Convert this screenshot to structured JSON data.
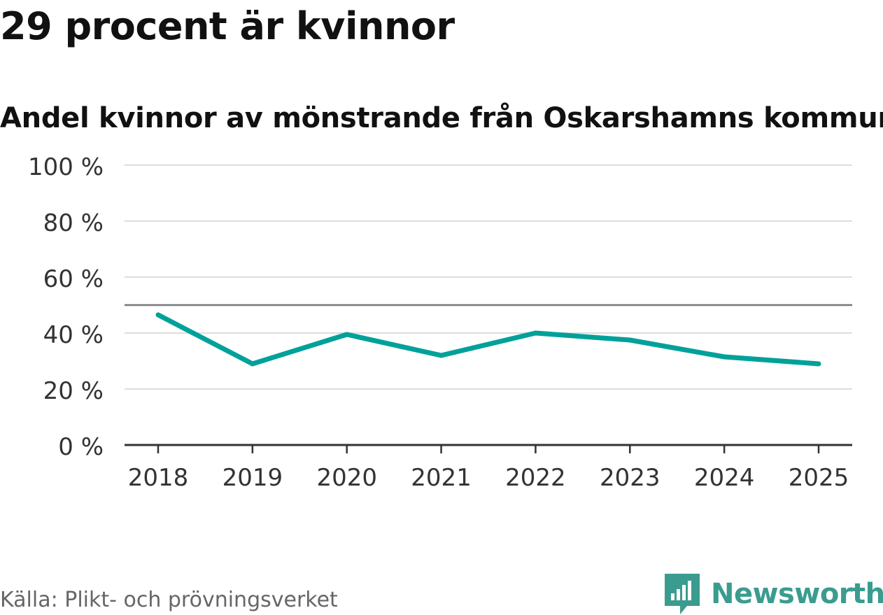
{
  "title": "29 procent är kvinnor",
  "subtitle": "Andel kvinnor av mönstrande från Oskarshamns kommun",
  "source": "Källa: Plikt- och prövningsverket",
  "brand": {
    "name": "Newsworthy",
    "icon": "newsworthy-logo-icon",
    "color": "#3a9c8f"
  },
  "colors": {
    "series": "#00a19a",
    "reference_line": "#777777",
    "grid": "#dddddd",
    "axis": "#333333"
  },
  "chart_data": {
    "type": "line",
    "title": "29 procent är kvinnor",
    "subtitle": "Andel kvinnor av mönstrande från Oskarshamns kommun",
    "categories": [
      "2018",
      "2019",
      "2020",
      "2021",
      "2022",
      "2023",
      "2024",
      "2025"
    ],
    "series": [
      {
        "values": [
          46.5,
          29,
          39.5,
          32,
          40,
          37.5,
          31.5,
          29
        ]
      }
    ],
    "reference_line": 50,
    "ylim": [
      0,
      100
    ],
    "yticks": [
      0,
      20,
      40,
      60,
      80,
      100
    ],
    "ytick_labels": [
      "0 %",
      "20 %",
      "40 %",
      "60 %",
      "80 %",
      "100 %"
    ],
    "grid": true,
    "legend": "none"
  }
}
